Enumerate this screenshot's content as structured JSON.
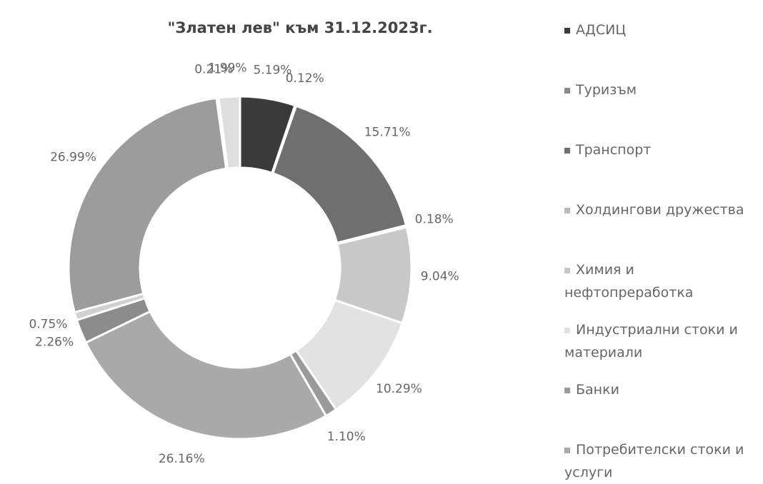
{
  "chart_data": {
    "type": "donut",
    "title": "\"Златен лев\" към 31.12.2023г.",
    "categories": [
      "АДСИЦ",
      "Туризъм",
      "Транспорт",
      "Холдингови дружества",
      "Химия и нефтопреработка",
      "Индустриални стоки и материали",
      "Банки",
      "Потребителски стоки и услуги",
      null,
      null,
      null,
      null,
      null
    ],
    "values": [
      5.19,
      0.12,
      15.71,
      0.18,
      9.04,
      10.29,
      1.1,
      26.16,
      2.26,
      0.75,
      26.99,
      0.21,
      1.99
    ],
    "value_labels": [
      "5.19%",
      "0.12%",
      "15.71%",
      "0.18%",
      "9.04%",
      "10.29%",
      "1.10%",
      "26.16%",
      "2.26%",
      "0.75%",
      "26.99%",
      "0.21%",
      "1.99%"
    ],
    "colors": [
      "#3a3a3a",
      "#8a8a8a",
      "#6f6f6f",
      "#bbbbbb",
      "#c8c8c8",
      "#e2e2e2",
      "#9a9a9a",
      "#a9a9a9",
      "#8c8c8c",
      "#d0d0d0",
      "#9c9c9c",
      "#b0b0b0",
      "#dedede"
    ]
  }
}
